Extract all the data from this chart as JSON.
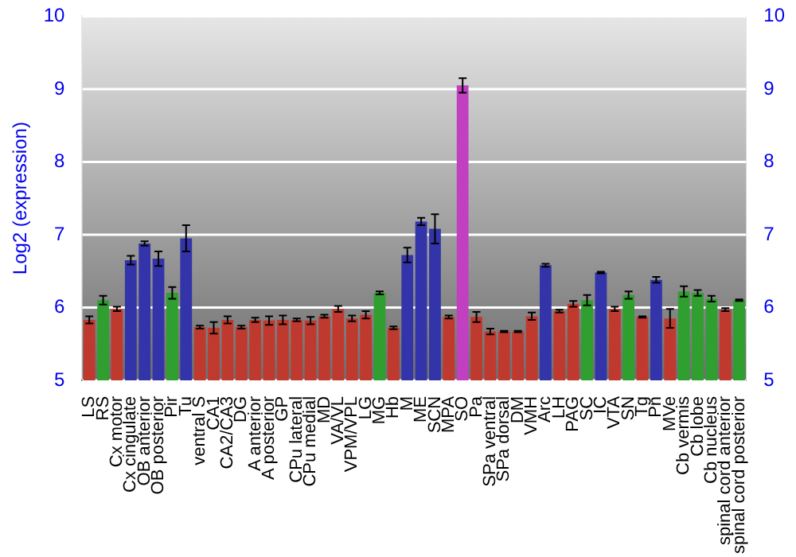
{
  "chart_data": {
    "type": "bar",
    "ylabel": "Log2 (expression)",
    "categories": [
      "LS",
      "RS",
      "Cx motor",
      "Cx cingulate",
      "OB anterior",
      "OB posterior",
      "Pir",
      "Tu",
      "ventral S",
      "CA1",
      "CA2/CA3",
      "DG",
      "A anterior",
      "A posterior",
      "GP",
      "CPu lateral",
      "CPu medial",
      "MD",
      "VA/VL",
      "VPM/VPL",
      "LG",
      "MG",
      "Hb",
      "M",
      "ME",
      "SCN",
      "MPA",
      "SO",
      "Pa",
      "SPa ventral",
      "SPa dorsal",
      "DM",
      "VMH",
      "Arc",
      "LH",
      "PAG",
      "SC",
      "IC",
      "VTA",
      "SN",
      "Tg",
      "Pn",
      "MVe",
      "Cb vermis",
      "Cb lobe",
      "Cb nucleus",
      "spinal cord anterior",
      "spinal cord posterior"
    ],
    "values": [
      5.83,
      6.1,
      5.98,
      6.65,
      6.88,
      6.67,
      6.2,
      6.95,
      5.73,
      5.72,
      5.83,
      5.73,
      5.83,
      5.82,
      5.83,
      5.83,
      5.82,
      5.88,
      5.98,
      5.85,
      5.9,
      6.2,
      5.72,
      6.72,
      7.18,
      7.08,
      5.87,
      9.05,
      5.87,
      5.67,
      5.67,
      5.67,
      5.88,
      6.58,
      5.95,
      6.05,
      6.1,
      6.48,
      5.98,
      6.17,
      5.87,
      6.38,
      5.85,
      6.22,
      6.2,
      6.12,
      5.97,
      6.1
    ],
    "colors": [
      "#c0392f",
      "#2fa02f",
      "#c0392f",
      "#3333aa",
      "#3333aa",
      "#3333aa",
      "#2fa02f",
      "#3333aa",
      "#c0392f",
      "#c0392f",
      "#c0392f",
      "#c0392f",
      "#c0392f",
      "#c0392f",
      "#c0392f",
      "#c0392f",
      "#c0392f",
      "#c0392f",
      "#c0392f",
      "#c0392f",
      "#c0392f",
      "#2fa02f",
      "#c0392f",
      "#3333aa",
      "#3333aa",
      "#3333aa",
      "#c0392f",
      "#c040c0",
      "#c0392f",
      "#c0392f",
      "#c0392f",
      "#c0392f",
      "#c0392f",
      "#3333aa",
      "#c0392f",
      "#c0392f",
      "#2fa02f",
      "#3333aa",
      "#c0392f",
      "#2fa02f",
      "#c0392f",
      "#3333aa",
      "#c0392f",
      "#2fa02f",
      "#2fa02f",
      "#2fa02f",
      "#c0392f",
      "#2fa02f"
    ],
    "errors": [
      0.05,
      0.06,
      0.03,
      0.06,
      0.03,
      0.1,
      0.08,
      0.18,
      0.02,
      0.08,
      0.05,
      0.02,
      0.03,
      0.06,
      0.06,
      0.02,
      0.05,
      0.02,
      0.04,
      0.04,
      0.05,
      0.02,
      0.02,
      0.1,
      0.05,
      0.2,
      0.02,
      0.1,
      0.07,
      0.04,
      0.01,
      0.01,
      0.05,
      0.02,
      0.02,
      0.04,
      0.07,
      0.01,
      0.03,
      0.05,
      0.01,
      0.04,
      0.13,
      0.07,
      0.04,
      0.04,
      0.02,
      0.01
    ],
    "ylim": [
      5,
      10
    ],
    "yticks": [
      5,
      6,
      7,
      8,
      9,
      10
    ],
    "y2lim": [
      5,
      10
    ],
    "y2ticks": [
      5,
      6,
      7,
      8,
      9,
      10
    ],
    "grid": true
  }
}
